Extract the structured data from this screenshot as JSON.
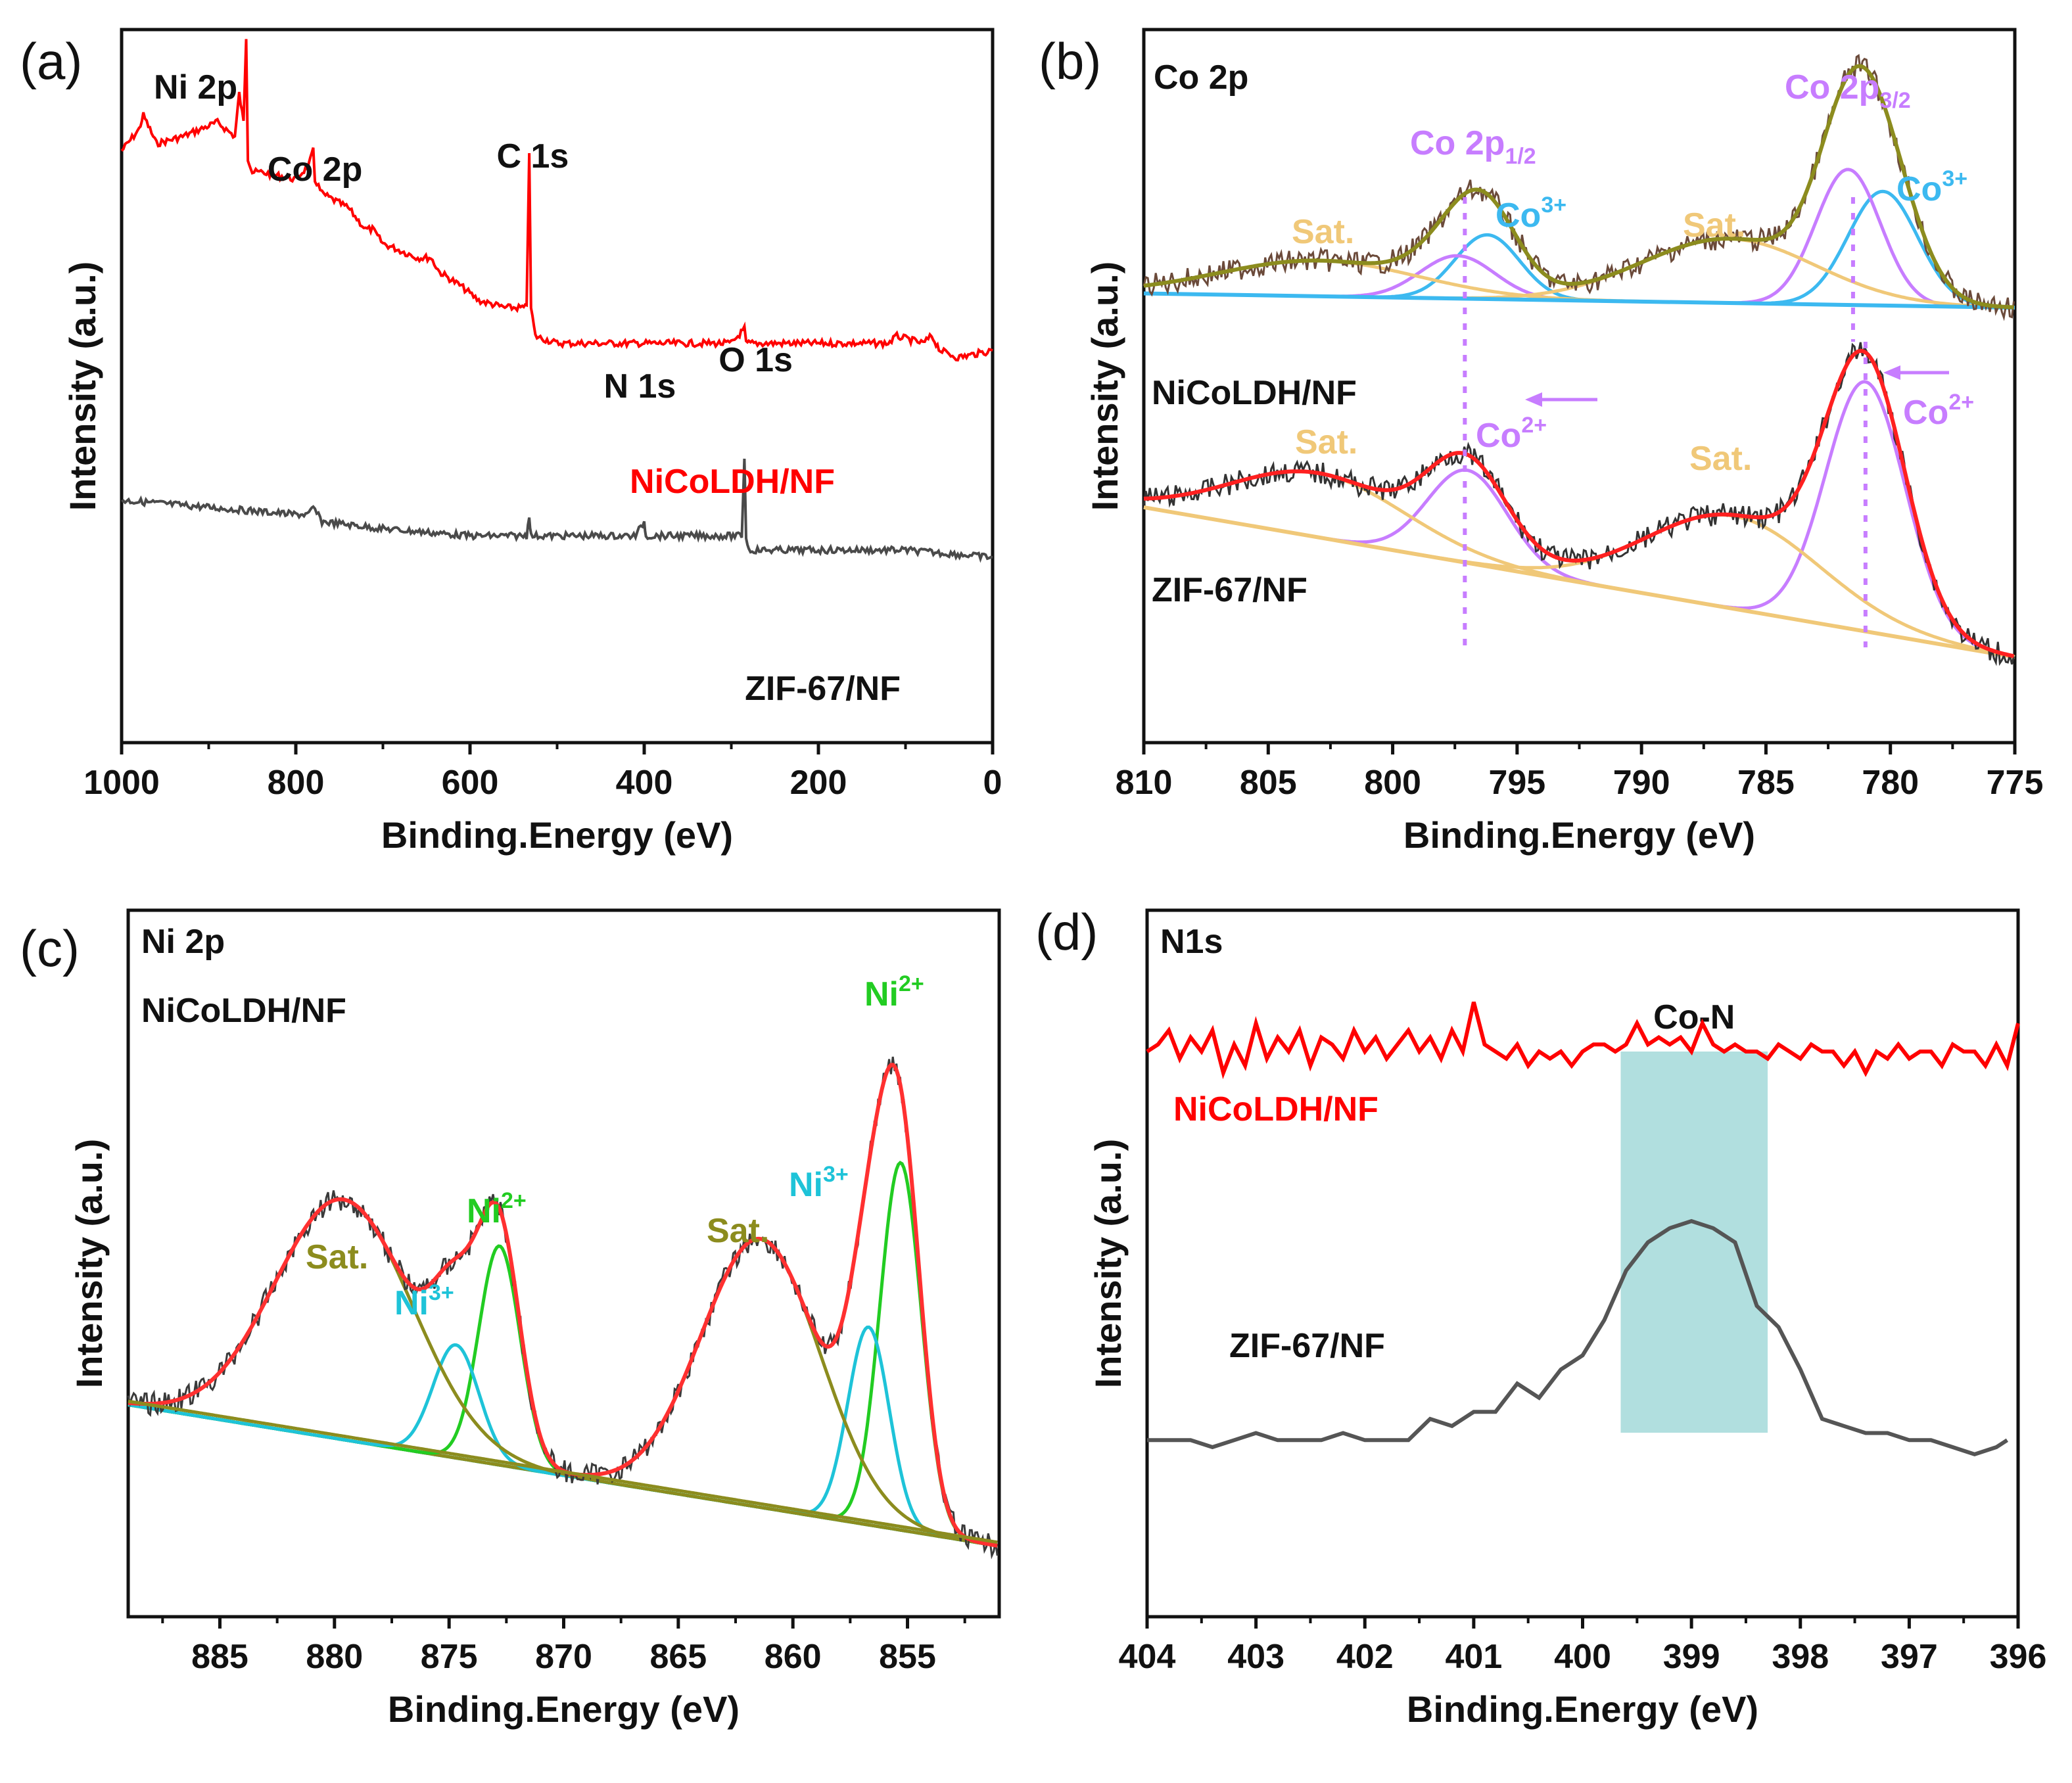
{
  "chart_data": [
    {
      "panel": "(a)",
      "type": "line",
      "xlabel": "Binding.Energy (eV)",
      "ylabel": "Intensity (a.u.)",
      "xlim": [
        1000,
        0
      ],
      "xticks": [
        1000,
        800,
        600,
        400,
        200,
        0
      ],
      "series": [
        {
          "name": "NiCoLDH/NF",
          "color": "#ff0000",
          "x": [
            1000,
            980,
            975,
            960,
            930,
            890,
            870,
            865,
            860,
            857,
            855,
            850,
            840,
            800,
            785,
            780,
            778,
            770,
            740,
            720,
            712,
            700,
            680,
            660,
            645,
            635,
            610,
            590,
            560,
            540,
            535,
            532,
            530,
            525,
            500,
            480,
            400,
            300,
            285,
            283,
            280,
            200,
            120,
            110,
            80,
            70,
            65,
            60,
            40,
            0
          ],
          "y": [
            0.83,
            0.86,
            0.88,
            0.84,
            0.85,
            0.87,
            0.85,
            0.91,
            0.87,
            0.99,
            0.82,
            0.8,
            0.8,
            0.79,
            0.81,
            0.83,
            0.79,
            0.77,
            0.75,
            0.72,
            0.72,
            0.7,
            0.69,
            0.68,
            0.68,
            0.66,
            0.64,
            0.62,
            0.61,
            0.61,
            0.61,
            0.83,
            0.61,
            0.57,
            0.56,
            0.56,
            0.56,
            0.56,
            0.58,
            0.56,
            0.56,
            0.56,
            0.56,
            0.57,
            0.56,
            0.57,
            0.56,
            0.55,
            0.54,
            0.55
          ]
        },
        {
          "name": "ZIF-67/NF",
          "color": "#4a4a4a",
          "x": [
            1000,
            900,
            800,
            785,
            780,
            770,
            700,
            600,
            535,
            532,
            530,
            500,
            410,
            400,
            398,
            390,
            300,
            288,
            285,
            283,
            280,
            200,
            100,
            0
          ],
          "y": [
            0.34,
            0.33,
            0.32,
            0.32,
            0.33,
            0.31,
            0.3,
            0.29,
            0.29,
            0.32,
            0.29,
            0.29,
            0.29,
            0.31,
            0.29,
            0.29,
            0.29,
            0.29,
            0.4,
            0.29,
            0.27,
            0.27,
            0.27,
            0.26
          ]
        }
      ],
      "annotations": [
        {
          "text": "Ni 2p",
          "x": 915
        },
        {
          "text": "Co 2p",
          "x": 778
        },
        {
          "text": "C 1s",
          "x": 528
        },
        {
          "text": "N 1s",
          "x": 405
        },
        {
          "text": "O 1s",
          "x": 272
        },
        {
          "text": "NiCoLDH/NF",
          "color": "#ff0000"
        },
        {
          "text": "ZIF-67/NF",
          "color": "#111111"
        }
      ]
    },
    {
      "panel": "(b)",
      "type": "line",
      "title": "Co 2p",
      "xlabel": "Binding.Energy (eV)",
      "ylabel": "Intensity (a.u.)",
      "xlim": [
        810,
        775
      ],
      "xticks": [
        810,
        805,
        800,
        795,
        790,
        785,
        780,
        775
      ],
      "peaks": [
        {
          "name": "NiCoLDH/NF Co 2p3/2 Co3+",
          "center": 780.3,
          "height": 0.16,
          "width": 1.4
        },
        {
          "name": "NiCoLDH/NF Co 2p3/2 Co2+",
          "center": 781.7,
          "height": 0.19,
          "width": 1.3
        },
        {
          "name": "NiCoLDH/NF Co 2p1/2 Co3+",
          "center": 796.2,
          "height": 0.09,
          "width": 1.3
        },
        {
          "name": "NiCoLDH/NF Co 2p1/2 Co2+",
          "center": 797.4,
          "height": 0.06,
          "width": 1.5
        },
        {
          "name": "NiCoLDH/NF Sat.",
          "center": 786.5,
          "height": 0.09,
          "width": 3.5
        },
        {
          "name": "NiCoLDH/NF Sat.",
          "center": 803,
          "height": 0.05,
          "width": 4
        },
        {
          "name": "ZIF-67/NF Co 2p3/2 Co2+",
          "center": 781,
          "height": 0.35,
          "width": 1.6
        },
        {
          "name": "ZIF-67/NF Co 2p1/2 Co2+",
          "center": 797,
          "height": 0.13,
          "width": 1.6
        },
        {
          "name": "ZIF-67/NF Sat.",
          "center": 786.3,
          "height": 0.13,
          "width": 3.5
        },
        {
          "name": "ZIF-67/NF Sat.",
          "center": 803,
          "height": 0.09,
          "width": 3.5
        }
      ],
      "reference_lines": [
        797.1,
        781.5,
        781
      ],
      "annotations": [
        {
          "text": "Co 2p",
          "x": 809
        },
        {
          "text": "Co 2p",
          "sub": "3/2",
          "x": 781,
          "color": "#c77dff"
        },
        {
          "text": "Co 2p",
          "sub": "1/2",
          "x": 796,
          "color": "#c77dff"
        },
        {
          "text": "Co",
          "sup": "3+",
          "x": 795,
          "color": "#3cb9f0"
        },
        {
          "text": "Co",
          "sup": "3+",
          "x": 779,
          "color": "#3cb9f0"
        },
        {
          "text": "Co",
          "sup": "2+",
          "x": 796,
          "color": "#c77dff"
        },
        {
          "text": "Co",
          "sup": "2+",
          "x": 778,
          "color": "#c77dff"
        },
        {
          "text": "Sat.",
          "x": 806,
          "color": "#f0c878"
        },
        {
          "text": "Sat.",
          "x": 788,
          "color": "#f0c878"
        },
        {
          "text": "Sat.",
          "x": 803,
          "color": "#f0c878"
        },
        {
          "text": "Sat.",
          "x": 786,
          "color": "#f0c878"
        },
        {
          "text": "NiCoLDH/NF",
          "color": "#111111"
        },
        {
          "text": "ZIF-67/NF",
          "color": "#111111"
        }
      ]
    },
    {
      "panel": "(c)",
      "type": "line",
      "title": "Ni 2p",
      "subtitle": "NiCoLDH/NF",
      "xlabel": "Binding.Energy (eV)",
      "ylabel": "Intensity (a.u.)",
      "xlim": [
        889,
        851
      ],
      "xticks": [
        885,
        880,
        875,
        870,
        865,
        860,
        855
      ],
      "peaks": [
        {
          "name": "Ni2+ 2p3/2",
          "center": 855.3,
          "height": 0.52,
          "width": 0.9
        },
        {
          "name": "Ni3+ 2p3/2",
          "center": 856.7,
          "height": 0.28,
          "width": 0.9
        },
        {
          "name": "Sat.",
          "center": 861.4,
          "height": 0.38,
          "width": 2.6
        },
        {
          "name": "Ni2+ 2p1/2",
          "center": 872.8,
          "height": 0.31,
          "width": 0.9
        },
        {
          "name": "Ni3+ 2p1/2",
          "center": 874.7,
          "height": 0.16,
          "width": 1.0
        },
        {
          "name": "Sat.",
          "center": 879.6,
          "height": 0.34,
          "width": 3.0
        }
      ],
      "annotations": [
        {
          "text": "Ni",
          "sup": "2+",
          "x": 855.3,
          "color": "#22cc22"
        },
        {
          "text": "Ni",
          "sup": "3+",
          "x": 857.5,
          "color": "#1ec3d8"
        },
        {
          "text": "Sat.",
          "x": 862,
          "color": "#8c8c1e"
        },
        {
          "text": "Ni",
          "sup": "2+",
          "x": 873,
          "color": "#22cc22"
        },
        {
          "text": "Ni",
          "sup": "3+",
          "x": 875,
          "color": "#1ec3d8"
        },
        {
          "text": "Sat.",
          "x": 880,
          "color": "#8c8c1e"
        }
      ]
    },
    {
      "panel": "(d)",
      "type": "line",
      "title": "N1s",
      "xlabel": "Binding.Energy (eV)",
      "ylabel": "Intensity (a.u.)",
      "xlim": [
        404,
        396
      ],
      "xticks": [
        404,
        403,
        402,
        401,
        400,
        399,
        398,
        397,
        396
      ],
      "highlight": {
        "label": "Co-N",
        "from": 399.65,
        "to": 398.3,
        "color": "#a8dcdc"
      },
      "series": [
        {
          "name": "NiCoLDH/NF",
          "color": "#ff0000",
          "x": [
            404,
            403.9,
            403.8,
            403.7,
            403.6,
            403.5,
            403.4,
            403.3,
            403.2,
            403.1,
            403.0,
            402.9,
            402.8,
            402.7,
            402.6,
            402.5,
            402.4,
            402.3,
            402.2,
            402.1,
            402.0,
            401.9,
            401.8,
            401.7,
            401.6,
            401.5,
            401.4,
            401.3,
            401.2,
            401.1,
            401.0,
            400.9,
            400.8,
            400.7,
            400.6,
            400.5,
            400.4,
            400.3,
            400.2,
            400.1,
            400.0,
            399.9,
            399.8,
            399.7,
            399.6,
            399.5,
            399.4,
            399.3,
            399.2,
            399.1,
            399.0,
            398.9,
            398.8,
            398.7,
            398.6,
            398.5,
            398.4,
            398.3,
            398.2,
            398.1,
            398.0,
            397.9,
            397.8,
            397.7,
            397.6,
            397.5,
            397.4,
            397.3,
            397.2,
            397.1,
            397.0,
            396.9,
            396.8,
            396.7,
            396.6,
            396.5,
            396.4,
            396.3,
            396.2,
            396.1,
            396.0
          ],
          "y": [
            0.8,
            0.81,
            0.83,
            0.79,
            0.82,
            0.8,
            0.83,
            0.77,
            0.81,
            0.78,
            0.84,
            0.79,
            0.82,
            0.8,
            0.83,
            0.78,
            0.82,
            0.81,
            0.79,
            0.83,
            0.8,
            0.82,
            0.79,
            0.81,
            0.83,
            0.8,
            0.82,
            0.79,
            0.83,
            0.8,
            0.87,
            0.81,
            0.8,
            0.79,
            0.81,
            0.78,
            0.8,
            0.79,
            0.8,
            0.78,
            0.8,
            0.81,
            0.81,
            0.8,
            0.81,
            0.84,
            0.81,
            0.82,
            0.81,
            0.82,
            0.8,
            0.84,
            0.81,
            0.8,
            0.81,
            0.8,
            0.8,
            0.79,
            0.81,
            0.8,
            0.79,
            0.81,
            0.8,
            0.8,
            0.78,
            0.8,
            0.77,
            0.8,
            0.79,
            0.81,
            0.79,
            0.8,
            0.8,
            0.78,
            0.81,
            0.8,
            0.8,
            0.78,
            0.81,
            0.78,
            0.84
          ]
        },
        {
          "name": "ZIF-67/NF",
          "color": "#555555",
          "x": [
            404,
            403.8,
            403.6,
            403.4,
            403.2,
            403.0,
            402.8,
            402.6,
            402.4,
            402.2,
            402.0,
            401.8,
            401.6,
            401.4,
            401.2,
            401.0,
            400.8,
            400.6,
            400.4,
            400.2,
            400.0,
            399.8,
            399.6,
            399.4,
            399.2,
            399.0,
            398.8,
            398.6,
            398.4,
            398.2,
            398.0,
            397.8,
            397.6,
            397.4,
            397.2,
            397.0,
            396.8,
            396.6,
            396.4,
            396.2,
            396.1
          ],
          "y": [
            0.25,
            0.25,
            0.25,
            0.24,
            0.25,
            0.26,
            0.25,
            0.25,
            0.25,
            0.26,
            0.25,
            0.25,
            0.25,
            0.28,
            0.27,
            0.29,
            0.29,
            0.33,
            0.31,
            0.35,
            0.37,
            0.42,
            0.49,
            0.53,
            0.55,
            0.56,
            0.55,
            0.53,
            0.44,
            0.41,
            0.35,
            0.28,
            0.27,
            0.26,
            0.26,
            0.25,
            0.25,
            0.24,
            0.23,
            0.24,
            0.25
          ]
        }
      ],
      "annotations": [
        {
          "text": "Co-N"
        },
        {
          "text": "NiCoLDH/NF",
          "color": "#ff0000"
        },
        {
          "text": "ZIF-67/NF",
          "color": "#111111"
        }
      ]
    }
  ]
}
